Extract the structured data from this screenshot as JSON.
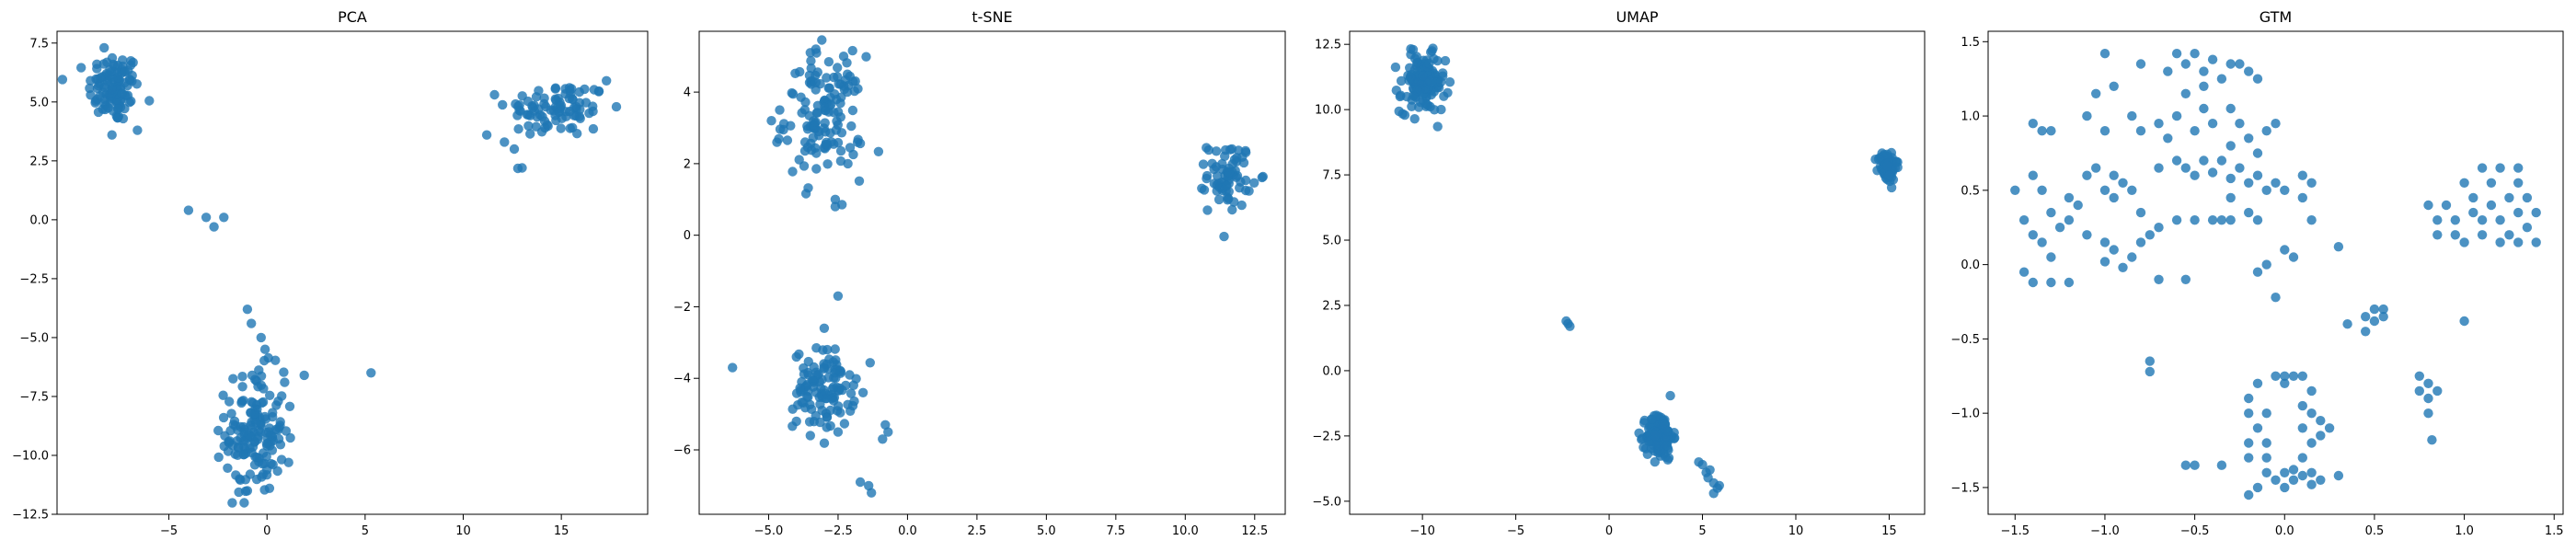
{
  "chart_data": [
    {
      "type": "scatter",
      "title": "PCA",
      "xlabel": "",
      "ylabel": "",
      "xlim": [
        -10.7,
        19.4
      ],
      "ylim": [
        -12.5,
        8.0
      ],
      "x_ticks": [
        -5,
        0,
        5,
        10,
        15
      ],
      "x_tick_labels": [
        "−5",
        "0",
        "5",
        "10",
        "15"
      ],
      "y_ticks": [
        -12.5,
        -10.0,
        -7.5,
        -5.0,
        -2.5,
        0.0,
        2.5,
        5.0,
        7.5
      ],
      "y_tick_labels": [
        "−12.5",
        "−10.0",
        "−7.5",
        "−5.0",
        "−2.5",
        "0.0",
        "2.5",
        "5.0",
        "7.5"
      ],
      "grid": false,
      "legend": "none",
      "color": "#1f77b4",
      "clusters": [
        {
          "cx": -7.8,
          "cy": 5.6,
          "sx": 0.65,
          "sy": 0.75,
          "n": 110
        },
        {
          "cx": 14.8,
          "cy": 4.7,
          "sx": 1.3,
          "sy": 0.6,
          "n": 90
        },
        {
          "cx": -0.6,
          "cy": -9.0,
          "sx": 0.75,
          "sy": 1.3,
          "n": 150
        }
      ],
      "points": [
        [
          -8.3,
          7.3
        ],
        [
          -7.9,
          3.6
        ],
        [
          -6.6,
          3.8
        ],
        [
          -4.0,
          0.4
        ],
        [
          -3.1,
          0.1
        ],
        [
          -2.7,
          -0.3
        ],
        [
          -2.2,
          0.1
        ],
        [
          11.2,
          3.6
        ],
        [
          12.1,
          3.3
        ],
        [
          12.6,
          3.0
        ],
        [
          13.0,
          2.2
        ],
        [
          17.3,
          5.9
        ],
        [
          -1.0,
          -3.8
        ],
        [
          -0.8,
          -4.4
        ],
        [
          -0.3,
          -5.0
        ],
        [
          -0.1,
          -5.5
        ],
        [
          0.9,
          -6.9
        ],
        [
          1.9,
          -6.6
        ],
        [
          5.3,
          -6.5
        ],
        [
          -1.4,
          -11.0
        ],
        [
          -1.0,
          -11.5
        ],
        [
          1.1,
          -10.3
        ],
        [
          -0.2,
          -10.8
        ]
      ]
    },
    {
      "type": "scatter",
      "title": "t-SNE",
      "xlabel": "",
      "ylabel": "",
      "xlim": [
        -7.5,
        13.6
      ],
      "ylim": [
        -7.8,
        5.7
      ],
      "x_ticks": [
        -5.0,
        -2.5,
        0.0,
        2.5,
        5.0,
        7.5,
        10.0,
        12.5
      ],
      "x_tick_labels": [
        "−5.0",
        "−2.5",
        "0.0",
        "2.5",
        "5.0",
        "7.5",
        "10.0",
        "12.5"
      ],
      "y_ticks": [
        -6,
        -4,
        -2,
        0,
        2,
        4
      ],
      "y_tick_labels": [
        "−6",
        "−4",
        "−2",
        "0",
        "2",
        "4"
      ],
      "grid": false,
      "legend": "none",
      "color": "#1f77b4",
      "clusters": [
        {
          "cx": -3.0,
          "cy": 3.3,
          "sx": 0.7,
          "sy": 0.85,
          "n": 130
        },
        {
          "cx": -3.0,
          "cy": -4.3,
          "sx": 0.55,
          "sy": 0.55,
          "n": 110
        },
        {
          "cx": 11.6,
          "cy": 1.7,
          "sx": 0.4,
          "sy": 0.45,
          "n": 70
        }
      ],
      "points": [
        [
          -3.5,
          5.1
        ],
        [
          -3.3,
          5.2
        ],
        [
          -2.3,
          5.0
        ],
        [
          -4.6,
          3.5
        ],
        [
          -4.9,
          3.2
        ],
        [
          -4.7,
          2.6
        ],
        [
          -1.8,
          2.6
        ],
        [
          -2.6,
          0.8
        ],
        [
          -2.6,
          1.0
        ],
        [
          -2.5,
          -1.7
        ],
        [
          -6.3,
          -3.7
        ],
        [
          -1.7,
          -6.9
        ],
        [
          -1.4,
          -7.0
        ],
        [
          -1.3,
          -7.2
        ],
        [
          -0.8,
          -5.3
        ],
        [
          -0.7,
          -5.5
        ],
        [
          -0.9,
          -5.7
        ],
        [
          -1.6,
          -4.4
        ],
        [
          -3.0,
          -2.6
        ],
        [
          -4.0,
          -5.2
        ],
        [
          -2.5,
          -5.5
        ],
        [
          -3.5,
          -5.6
        ],
        [
          10.8,
          0.7
        ]
      ]
    },
    {
      "type": "scatter",
      "title": "UMAP",
      "xlabel": "",
      "ylabel": "",
      "xlim": [
        -13.9,
        16.9
      ],
      "ylim": [
        -5.5,
        13.0
      ],
      "x_ticks": [
        -10,
        -5,
        0,
        5,
        10,
        15
      ],
      "x_tick_labels": [
        "−10",
        "−5",
        "0",
        "5",
        "10",
        "15"
      ],
      "y_ticks": [
        -5.0,
        -2.5,
        0.0,
        2.5,
        5.0,
        7.5,
        10.0,
        12.5
      ],
      "y_tick_labels": [
        "−5.0",
        "−2.5",
        "0.0",
        "2.5",
        "5.0",
        "7.5",
        "10.0",
        "12.5"
      ],
      "grid": false,
      "legend": "none",
      "color": "#1f77b4",
      "clusters": [
        {
          "cx": -10.0,
          "cy": 11.0,
          "sx": 0.6,
          "sy": 0.55,
          "n": 130
        },
        {
          "cx": 14.9,
          "cy": 7.8,
          "sx": 0.25,
          "sy": 0.3,
          "n": 80
        },
        {
          "cx": 2.7,
          "cy": -2.5,
          "sx": 0.35,
          "sy": 0.45,
          "n": 130
        }
      ],
      "points": [
        [
          -2.3,
          1.9
        ],
        [
          -2.2,
          1.8
        ],
        [
          -2.1,
          1.7
        ],
        [
          4.8,
          -3.5
        ],
        [
          5.0,
          -3.6
        ],
        [
          5.2,
          -3.9
        ],
        [
          5.3,
          -4.1
        ],
        [
          5.6,
          -4.3
        ],
        [
          5.8,
          -4.5
        ],
        [
          5.6,
          -4.7
        ],
        [
          5.9,
          -4.4
        ],
        [
          5.4,
          -3.8
        ],
        [
          -10.5,
          12.3
        ],
        [
          -9.0,
          10.0
        ],
        [
          -11.2,
          10.5
        ]
      ]
    },
    {
      "type": "scatter",
      "title": "GTM",
      "xlabel": "",
      "ylabel": "",
      "xlim": [
        -1.65,
        1.55
      ],
      "ylim": [
        -1.68,
        1.57
      ],
      "x_ticks": [
        -1.5,
        -1.0,
        -0.5,
        0.0,
        0.5,
        1.0,
        1.5
      ],
      "x_tick_labels": [
        "−1.5",
        "−1.0",
        "−0.5",
        "0.0",
        "0.5",
        "1.0",
        "1.5"
      ],
      "y_ticks": [
        -1.5,
        -1.0,
        -0.5,
        0.0,
        0.5,
        1.0,
        1.5
      ],
      "y_tick_labels": [
        "−1.5",
        "−1.0",
        "−0.5",
        "0.0",
        "0.5",
        "1.0",
        "1.5"
      ],
      "grid": false,
      "legend": "none",
      "color": "#1f77b4",
      "clusters": [],
      "points": [
        [
          -1.0,
          1.42
        ],
        [
          -0.8,
          1.35
        ],
        [
          -0.65,
          1.3
        ],
        [
          -0.6,
          1.42
        ],
        [
          -0.55,
          1.35
        ],
        [
          -0.5,
          1.42
        ],
        [
          -0.45,
          1.3
        ],
        [
          -0.4,
          1.38
        ],
        [
          -0.35,
          1.25
        ],
        [
          -0.3,
          1.35
        ],
        [
          -0.25,
          1.35
        ],
        [
          -0.2,
          1.3
        ],
        [
          -0.15,
          1.25
        ],
        [
          -0.45,
          1.2
        ],
        [
          -0.55,
          1.15
        ],
        [
          -1.1,
          1.0
        ],
        [
          -1.05,
          1.15
        ],
        [
          -1.0,
          0.9
        ],
        [
          -0.95,
          1.2
        ],
        [
          -0.85,
          1.0
        ],
        [
          -0.8,
          0.9
        ],
        [
          -0.7,
          0.95
        ],
        [
          -0.65,
          0.85
        ],
        [
          -0.6,
          1.0
        ],
        [
          -0.5,
          0.9
        ],
        [
          -0.45,
          1.05
        ],
        [
          -0.4,
          0.95
        ],
        [
          -0.3,
          1.05
        ],
        [
          -0.25,
          0.95
        ],
        [
          -0.2,
          0.85
        ],
        [
          -0.15,
          0.75
        ],
        [
          -0.3,
          0.8
        ],
        [
          -0.1,
          0.9
        ],
        [
          -0.05,
          0.95
        ],
        [
          -1.4,
          0.95
        ],
        [
          -1.35,
          0.9
        ],
        [
          -1.3,
          0.9
        ],
        [
          -1.4,
          0.6
        ],
        [
          -1.35,
          0.5
        ],
        [
          -1.2,
          0.45
        ],
        [
          -1.15,
          0.4
        ],
        [
          -1.3,
          0.35
        ],
        [
          -1.1,
          0.6
        ],
        [
          -1.05,
          0.65
        ],
        [
          -0.95,
          0.6
        ],
        [
          -1.0,
          0.5
        ],
        [
          -0.9,
          0.55
        ],
        [
          -0.95,
          0.45
        ],
        [
          -0.85,
          0.5
        ],
        [
          -0.7,
          0.65
        ],
        [
          -0.6,
          0.7
        ],
        [
          -0.55,
          0.65
        ],
        [
          -0.5,
          0.6
        ],
        [
          -0.45,
          0.7
        ],
        [
          -0.4,
          0.62
        ],
        [
          -0.35,
          0.7
        ],
        [
          -0.3,
          0.58
        ],
        [
          -0.25,
          0.65
        ],
        [
          -0.2,
          0.55
        ],
        [
          -0.15,
          0.6
        ],
        [
          -0.1,
          0.5
        ],
        [
          -0.05,
          0.55
        ],
        [
          0.0,
          0.5
        ],
        [
          0.1,
          0.6
        ],
        [
          0.15,
          0.55
        ],
        [
          -0.3,
          0.45
        ],
        [
          -0.2,
          0.35
        ],
        [
          -0.35,
          0.3
        ],
        [
          -1.5,
          0.5
        ],
        [
          -1.45,
          0.3
        ],
        [
          -1.4,
          0.2
        ],
        [
          -1.35,
          0.15
        ],
        [
          -1.3,
          0.05
        ],
        [
          -1.25,
          0.25
        ],
        [
          -1.2,
          0.3
        ],
        [
          -1.1,
          0.2
        ],
        [
          -1.0,
          0.15
        ],
        [
          -0.95,
          0.1
        ],
        [
          -0.85,
          0.05
        ],
        [
          -0.8,
          0.15
        ],
        [
          -0.75,
          0.2
        ],
        [
          -0.7,
          0.25
        ],
        [
          -0.8,
          0.35
        ],
        [
          -0.6,
          0.3
        ],
        [
          -0.5,
          0.3
        ],
        [
          -0.4,
          0.3
        ],
        [
          -0.3,
          0.3
        ],
        [
          -0.15,
          0.3
        ],
        [
          0.1,
          0.45
        ],
        [
          0.15,
          0.3
        ],
        [
          -1.45,
          -0.05
        ],
        [
          -1.4,
          -0.12
        ],
        [
          -1.3,
          -0.12
        ],
        [
          -1.2,
          -0.12
        ],
        [
          -1.0,
          0.02
        ],
        [
          -0.9,
          -0.02
        ],
        [
          -0.7,
          -0.1
        ],
        [
          -0.55,
          -0.1
        ],
        [
          -0.15,
          -0.05
        ],
        [
          -0.1,
          0.0
        ],
        [
          0.0,
          0.1
        ],
        [
          0.05,
          0.05
        ],
        [
          0.3,
          0.12
        ],
        [
          0.35,
          -0.4
        ],
        [
          0.45,
          -0.35
        ],
        [
          0.5,
          -0.3
        ],
        [
          0.55,
          -0.35
        ],
        [
          0.45,
          -0.45
        ],
        [
          0.5,
          -0.38
        ],
        [
          0.55,
          -0.3
        ],
        [
          0.8,
          0.4
        ],
        [
          0.85,
          0.3
        ],
        [
          0.9,
          0.4
        ],
        [
          0.95,
          0.3
        ],
        [
          0.85,
          0.2
        ],
        [
          0.95,
          0.2
        ],
        [
          1.0,
          0.55
        ],
        [
          1.05,
          0.45
        ],
        [
          1.05,
          0.35
        ],
        [
          1.1,
          0.3
        ],
        [
          1.1,
          0.2
        ],
        [
          1.15,
          0.4
        ],
        [
          1.15,
          0.55
        ],
        [
          1.2,
          0.65
        ],
        [
          1.2,
          0.3
        ],
        [
          1.25,
          0.45
        ],
        [
          1.25,
          0.2
        ],
        [
          1.3,
          0.55
        ],
        [
          1.3,
          0.35
        ],
        [
          1.35,
          0.45
        ],
        [
          1.35,
          0.25
        ],
        [
          1.4,
          0.35
        ],
        [
          1.4,
          0.15
        ],
        [
          1.3,
          0.15
        ],
        [
          1.2,
          0.15
        ],
        [
          1.0,
          0.15
        ],
        [
          1.1,
          0.65
        ],
        [
          1.3,
          0.65
        ],
        [
          1.0,
          -0.38
        ],
        [
          -0.75,
          -0.65
        ],
        [
          -0.75,
          -0.72
        ],
        [
          -0.55,
          -1.35
        ],
        [
          -0.5,
          -1.35
        ],
        [
          -0.35,
          -1.35
        ],
        [
          -0.05,
          -0.22
        ],
        [
          -0.05,
          -0.75
        ],
        [
          0.0,
          -0.75
        ],
        [
          0.05,
          -0.75
        ],
        [
          0.1,
          -0.75
        ],
        [
          0.0,
          -0.8
        ],
        [
          -0.15,
          -0.8
        ],
        [
          -0.2,
          -0.9
        ],
        [
          -0.1,
          -1.0
        ],
        [
          -0.2,
          -1.0
        ],
        [
          -0.15,
          -1.1
        ],
        [
          -0.1,
          -1.2
        ],
        [
          -0.2,
          -1.3
        ],
        [
          -0.1,
          -1.4
        ],
        [
          -0.15,
          -1.5
        ],
        [
          -0.2,
          -1.55
        ],
        [
          -0.2,
          -1.2
        ],
        [
          -0.1,
          -1.3
        ],
        [
          0.0,
          -1.4
        ],
        [
          0.05,
          -1.45
        ],
        [
          0.1,
          -1.42
        ],
        [
          0.15,
          -1.48
        ],
        [
          0.0,
          -1.5
        ],
        [
          0.05,
          -1.38
        ],
        [
          0.1,
          -1.3
        ],
        [
          0.15,
          -1.4
        ],
        [
          0.2,
          -1.45
        ],
        [
          -0.05,
          -1.45
        ],
        [
          0.1,
          -0.95
        ],
        [
          0.15,
          -1.0
        ],
        [
          0.1,
          -1.1
        ],
        [
          0.15,
          -1.2
        ],
        [
          0.2,
          -1.05
        ],
        [
          0.2,
          -1.15
        ],
        [
          0.25,
          -1.1
        ],
        [
          0.15,
          -0.85
        ],
        [
          0.3,
          -1.42
        ],
        [
          0.75,
          -0.75
        ],
        [
          0.75,
          -0.85
        ],
        [
          0.8,
          -0.8
        ],
        [
          0.8,
          -0.9
        ],
        [
          0.85,
          -0.85
        ],
        [
          0.8,
          -1.0
        ],
        [
          0.82,
          -1.18
        ]
      ]
    }
  ]
}
